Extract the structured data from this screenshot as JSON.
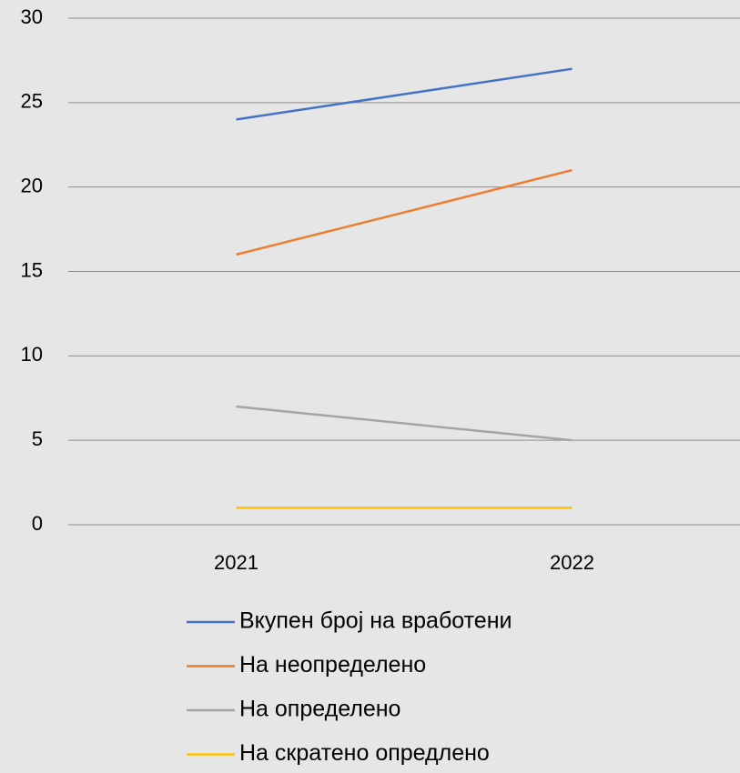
{
  "chart_data": {
    "type": "line",
    "categories": [
      "2021",
      "2022"
    ],
    "series": [
      {
        "name": "Вкупен број на вработени",
        "color": "#4472c4",
        "values": [
          24,
          27
        ]
      },
      {
        "name": "На неопределено",
        "color": "#ed7d31",
        "values": [
          16,
          21
        ]
      },
      {
        "name": "На определено",
        "color": "#a5a5a5",
        "values": [
          7,
          5
        ]
      },
      {
        "name": "На скратено опредлено",
        "color": "#ffc000",
        "values": [
          1,
          1
        ]
      }
    ],
    "ylim": [
      0,
      30
    ],
    "yticks": [
      0,
      5,
      10,
      15,
      20,
      25,
      30
    ],
    "grid": true,
    "legend": "bottom"
  }
}
